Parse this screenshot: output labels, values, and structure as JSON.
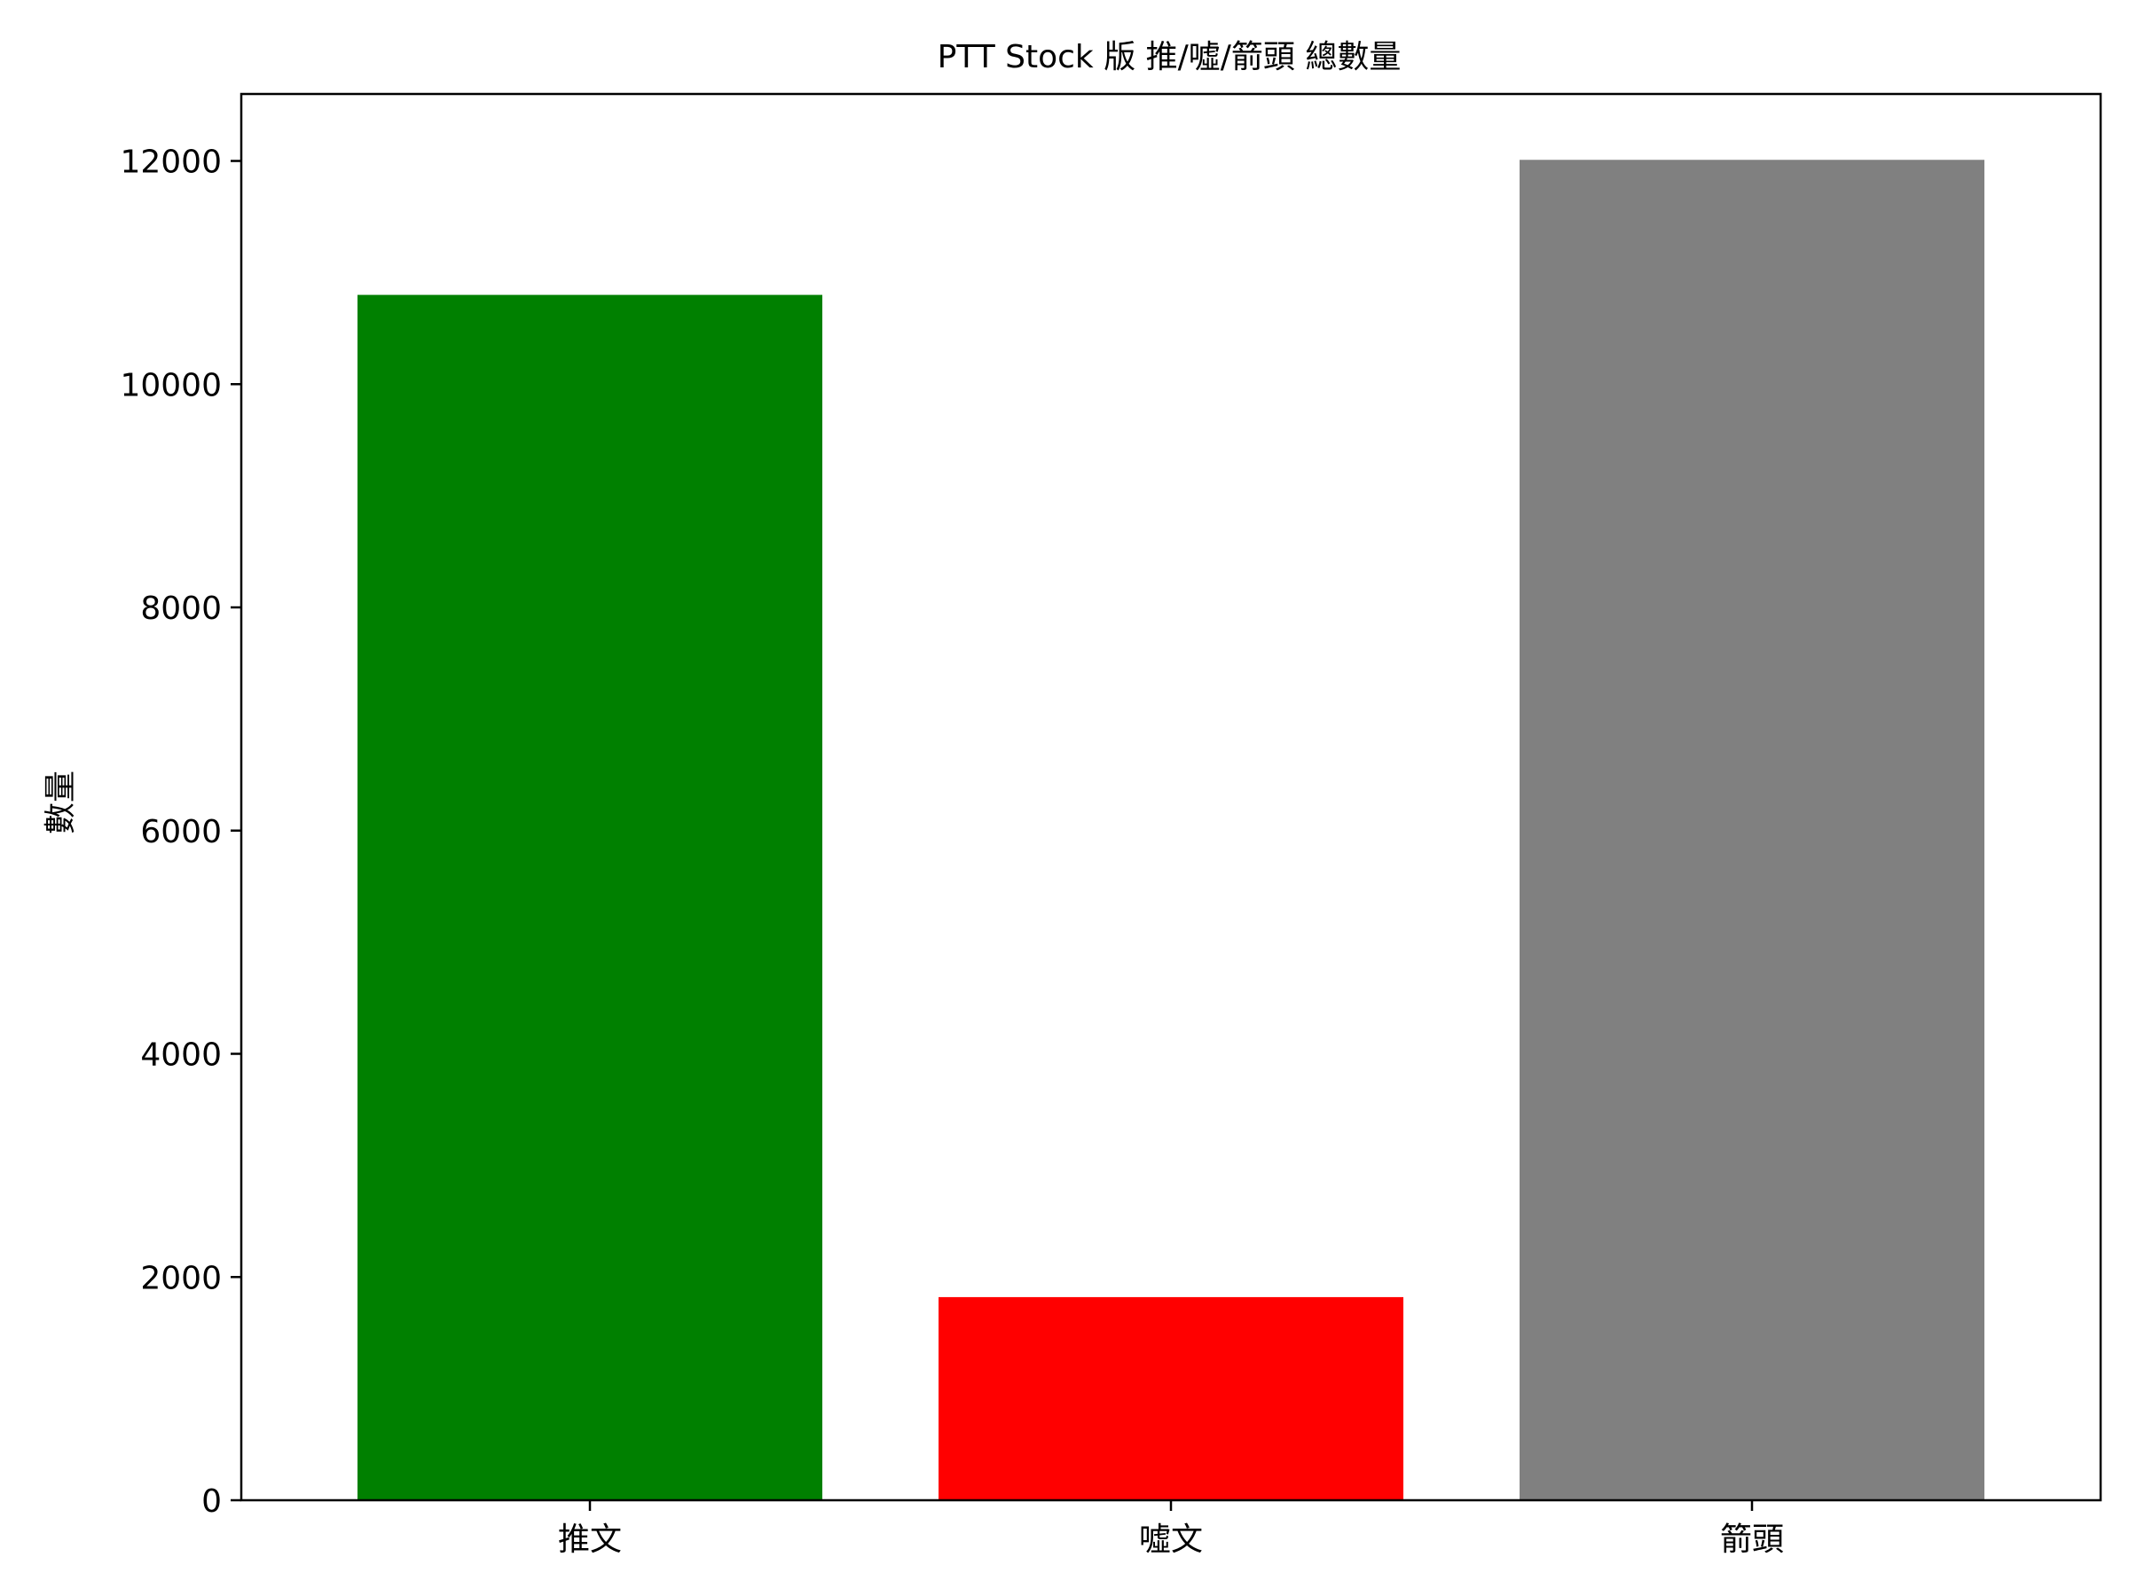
{
  "chart_data": {
    "type": "bar",
    "title": "PTT Stock 版 推/噓/箭頭 總數量",
    "xlabel": "",
    "ylabel": "數量",
    "categories": [
      "推文",
      "噓文",
      "箭頭"
    ],
    "values": [
      10800,
      1820,
      12010
    ],
    "colors": [
      "#008000",
      "#ff0000",
      "#808080"
    ],
    "ylim": [
      0,
      12600
    ],
    "yticks": [
      0,
      2000,
      4000,
      6000,
      8000,
      10000,
      12000
    ],
    "ytick_labels": [
      "0",
      "2000",
      "4000",
      "6000",
      "8000",
      "10000",
      "12000"
    ],
    "grid": false,
    "legend": "none"
  }
}
